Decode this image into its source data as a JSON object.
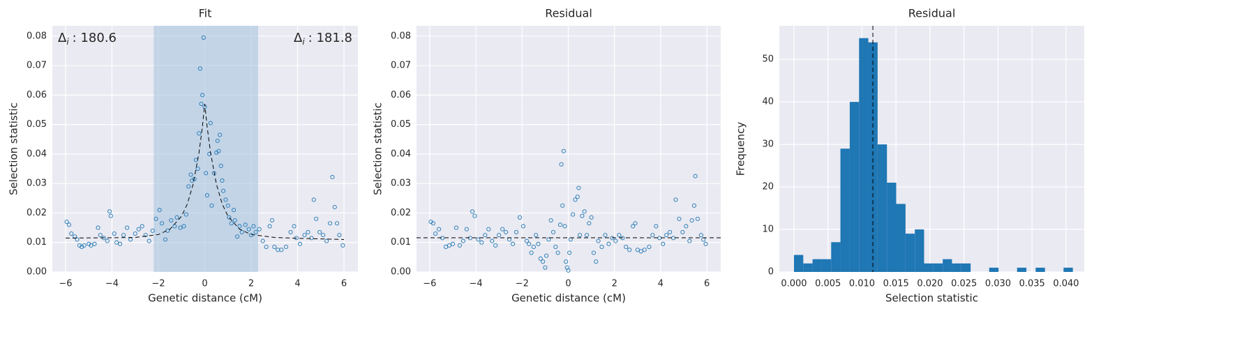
{
  "chart_data": [
    {
      "type": "scatter",
      "title": "Fit",
      "xlabel": "Genetic distance (cM)",
      "ylabel": "Selection statistic",
      "xlim": [
        -6.57,
        6.6
      ],
      "ylim": [
        0,
        0.0835
      ],
      "xticks": [
        {
          "value": -6,
          "label": "−6"
        },
        {
          "value": -4,
          "label": "−4"
        },
        {
          "value": -2,
          "label": "−2"
        },
        0,
        2,
        4,
        6
      ],
      "yticks": [
        {
          "value": 0,
          "label": "0.00"
        },
        {
          "value": 0.01,
          "label": "0.01"
        },
        {
          "value": 0.02,
          "label": "0.02"
        },
        {
          "value": 0.03,
          "label": "0.03"
        },
        {
          "value": 0.04,
          "label": "0.04"
        },
        {
          "value": 0.05,
          "label": "0.05"
        },
        {
          "value": 0.06,
          "label": "0.06"
        },
        {
          "value": 0.07,
          "label": "0.07"
        },
        {
          "value": 0.08,
          "label": "0.08"
        }
      ],
      "grid": true,
      "color": "#1f77b4",
      "span": [
        -2.2,
        2.3
      ],
      "span_color": "#a8c4e0",
      "annotations": [
        {
          "symbol": "Δ",
          "subscript": "i",
          "text": ": 180.6"
        },
        {
          "symbol": "Δ",
          "subscript": "i",
          "text": ": 181.8"
        }
      ],
      "x": [
        -5.95,
        -5.85,
        -5.75,
        -5.6,
        -5.5,
        -5.4,
        -5.3,
        -5.2,
        -5.0,
        -4.9,
        -4.75,
        -4.6,
        -4.5,
        -4.35,
        -4.2,
        -4.1,
        -4.05,
        -3.9,
        -3.8,
        -3.65,
        -3.5,
        -3.35,
        -3.2,
        -3.0,
        -2.85,
        -2.7,
        -2.55,
        -2.4,
        -2.25,
        -2.1,
        -1.95,
        -1.85,
        -1.7,
        -1.6,
        -1.45,
        -1.3,
        -1.2,
        -1.05,
        -0.9,
        -0.8,
        -0.7,
        -0.6,
        -0.55,
        -0.45,
        -0.38,
        -0.3,
        -0.25,
        -0.2,
        -0.15,
        -0.1,
        -0.05,
        0.0,
        0.05,
        0.1,
        0.2,
        0.25,
        0.3,
        0.4,
        0.5,
        0.55,
        0.6,
        0.65,
        0.7,
        0.75,
        0.8,
        0.9,
        1.0,
        1.05,
        1.15,
        1.25,
        1.3,
        1.4,
        1.5,
        1.6,
        1.75,
        1.9,
        2.0,
        2.1,
        2.2,
        2.35,
        2.5,
        2.65,
        2.8,
        2.9,
        3.0,
        3.15,
        3.3,
        3.5,
        3.7,
        3.85,
        3.95,
        4.1,
        4.3,
        4.45,
        4.6,
        4.7,
        4.8,
        4.95,
        5.1,
        5.25,
        5.4,
        5.5,
        5.6,
        5.7,
        5.8,
        5.95
      ],
      "values": [
        0.017,
        0.016,
        0.013,
        0.012,
        0.011,
        0.009,
        0.0085,
        0.009,
        0.0095,
        0.009,
        0.0095,
        0.015,
        0.0125,
        0.0115,
        0.0105,
        0.0205,
        0.019,
        0.013,
        0.01,
        0.0095,
        0.0125,
        0.015,
        0.011,
        0.013,
        0.0145,
        0.0155,
        0.0125,
        0.0105,
        0.014,
        0.018,
        0.021,
        0.0165,
        0.011,
        0.014,
        0.0175,
        0.0155,
        0.0185,
        0.015,
        0.0155,
        0.0195,
        0.029,
        0.033,
        0.031,
        0.0315,
        0.038,
        0.035,
        0.047,
        0.069,
        0.057,
        0.06,
        0.0795,
        0.056,
        0.0335,
        0.026,
        0.04,
        0.0505,
        0.0225,
        0.0335,
        0.0405,
        0.0445,
        0.041,
        0.0465,
        0.036,
        0.031,
        0.0275,
        0.0245,
        0.0225,
        0.0185,
        0.0165,
        0.021,
        0.0175,
        0.012,
        0.0155,
        0.0135,
        0.016,
        0.0145,
        0.0125,
        0.0155,
        0.0135,
        0.0145,
        0.0105,
        0.0085,
        0.0155,
        0.0175,
        0.0085,
        0.0075,
        0.0075,
        0.0085,
        0.0135,
        0.0155,
        0.0115,
        0.0095,
        0.0125,
        0.0135,
        0.0115,
        0.0245,
        0.018,
        0.0135,
        0.0125,
        0.0105,
        0.0165,
        0.0322,
        0.022,
        0.0165,
        0.0125,
        0.009
      ],
      "fit": {
        "x": [
          -6,
          -4,
          -3,
          -2,
          -1.5,
          -1,
          -0.75,
          -0.5,
          -0.25,
          -0.1,
          0,
          0.1,
          0.25,
          0.5,
          0.75,
          1,
          1.5,
          2,
          3,
          4,
          6
        ],
        "values": [
          0.0115,
          0.0116,
          0.0117,
          0.0127,
          0.0145,
          0.0189,
          0.0231,
          0.0298,
          0.0404,
          0.0494,
          0.057,
          0.0494,
          0.0404,
          0.0298,
          0.0231,
          0.0189,
          0.0145,
          0.0127,
          0.0117,
          0.0114,
          0.011
        ]
      }
    },
    {
      "type": "scatter",
      "title": "Residual",
      "xlabel": "Genetic distance (cM)",
      "ylabel": "Selection statistic",
      "xlim": [
        -6.57,
        6.6
      ],
      "ylim": [
        0,
        0.0835
      ],
      "xticks": [
        {
          "value": -6,
          "label": "−6"
        },
        {
          "value": -4,
          "label": "−4"
        },
        {
          "value": -2,
          "label": "−2"
        },
        0,
        2,
        4,
        6
      ],
      "yticks": [
        {
          "value": 0,
          "label": "0.00"
        },
        {
          "value": 0.01,
          "label": "0.01"
        },
        {
          "value": 0.02,
          "label": "0.02"
        },
        {
          "value": 0.03,
          "label": "0.03"
        },
        {
          "value": 0.04,
          "label": "0.04"
        },
        {
          "value": 0.05,
          "label": "0.05"
        },
        {
          "value": 0.06,
          "label": "0.06"
        },
        {
          "value": 0.07,
          "label": "0.07"
        },
        {
          "value": 0.08,
          "label": "0.08"
        }
      ],
      "grid": true,
      "color": "#1f77b4",
      "hline": 0.0116,
      "x": [
        -5.95,
        -5.85,
        -5.75,
        -5.6,
        -5.45,
        -5.3,
        -5.15,
        -5.0,
        -4.85,
        -4.7,
        -4.55,
        -4.4,
        -4.25,
        -4.15,
        -4.05,
        -3.9,
        -3.75,
        -3.6,
        -3.45,
        -3.3,
        -3.15,
        -3.0,
        -2.85,
        -2.7,
        -2.55,
        -2.4,
        -2.25,
        -2.1,
        -1.95,
        -1.8,
        -1.7,
        -1.6,
        -1.5,
        -1.4,
        -1.3,
        -1.2,
        -1.1,
        -1.0,
        -0.95,
        -0.85,
        -0.75,
        -0.65,
        -0.55,
        -0.45,
        -0.35,
        -0.3,
        -0.25,
        -0.2,
        -0.15,
        -0.1,
        -0.05,
        0.0,
        0.05,
        0.1,
        0.2,
        0.3,
        0.4,
        0.45,
        0.5,
        0.6,
        0.7,
        0.8,
        0.9,
        1.0,
        1.1,
        1.2,
        1.3,
        1.45,
        1.6,
        1.75,
        1.9,
        2.05,
        2.2,
        2.35,
        2.5,
        2.65,
        2.8,
        2.9,
        3.0,
        3.15,
        3.3,
        3.5,
        3.65,
        3.8,
        3.95,
        4.1,
        4.25,
        4.4,
        4.55,
        4.65,
        4.8,
        4.95,
        5.1,
        5.25,
        5.35,
        5.45,
        5.5,
        5.6,
        5.75,
        5.85,
        5.95
      ],
      "values": [
        0.017,
        0.0165,
        0.013,
        0.0145,
        0.0115,
        0.0085,
        0.009,
        0.0095,
        0.015,
        0.009,
        0.0105,
        0.0145,
        0.0115,
        0.0205,
        0.019,
        0.011,
        0.01,
        0.0125,
        0.0145,
        0.0105,
        0.009,
        0.0125,
        0.0145,
        0.0135,
        0.011,
        0.0095,
        0.0135,
        0.0185,
        0.0155,
        0.0105,
        0.0095,
        0.0065,
        0.0085,
        0.0125,
        0.0095,
        0.0045,
        0.0035,
        0.0015,
        0.0055,
        0.011,
        0.0175,
        0.0135,
        0.0085,
        0.0065,
        0.016,
        0.0365,
        0.0225,
        0.041,
        0.0155,
        0.0035,
        0.0015,
        0.0005,
        0.0065,
        0.011,
        0.0195,
        0.0245,
        0.0255,
        0.0285,
        0.0125,
        0.019,
        0.0205,
        0.0125,
        0.0165,
        0.0185,
        0.0065,
        0.0035,
        0.0105,
        0.0085,
        0.0125,
        0.0095,
        0.0115,
        0.0105,
        0.0125,
        0.0115,
        0.0085,
        0.0075,
        0.0155,
        0.0165,
        0.0075,
        0.007,
        0.0075,
        0.0085,
        0.0125,
        0.0155,
        0.0115,
        0.0095,
        0.0125,
        0.0135,
        0.0115,
        0.0245,
        0.018,
        0.0135,
        0.0155,
        0.0105,
        0.0175,
        0.0225,
        0.0325,
        0.018,
        0.0125,
        0.011,
        0.0095
      ]
    },
    {
      "type": "histogram",
      "title": "Residual",
      "xlabel": "Selection statistic",
      "ylabel": "Frequency",
      "xlim": [
        -0.00215,
        0.04267
      ],
      "ylim": [
        0,
        57.9
      ],
      "xticks": [
        {
          "value": 0,
          "label": "0.000"
        },
        {
          "value": 0.005,
          "label": "0.005"
        },
        {
          "value": 0.01,
          "label": "0.010"
        },
        {
          "value": 0.015,
          "label": "0.015"
        },
        {
          "value": 0.02,
          "label": "0.020"
        },
        {
          "value": 0.025,
          "label": "0.025"
        },
        {
          "value": 0.03,
          "label": "0.030"
        },
        {
          "value": 0.035,
          "label": "0.035"
        },
        {
          "value": 0.04,
          "label": "0.040"
        }
      ],
      "yticks": [
        0,
        10,
        20,
        30,
        40,
        50
      ],
      "grid": true,
      "color": "#1f77b4",
      "vline": 0.0116,
      "bins": [
        0,
        0.00137,
        0.00273,
        0.0041,
        0.00547,
        0.00683,
        0.0082,
        0.00957,
        0.01093,
        0.0123,
        0.01367,
        0.01503,
        0.0164,
        0.01777,
        0.01913,
        0.0205,
        0.02187,
        0.02323,
        0.0246,
        0.02597,
        0.02733,
        0.0287,
        0.03007,
        0.03143,
        0.0328,
        0.03417,
        0.03553,
        0.0369,
        0.03827,
        0.03963,
        0.041
      ],
      "values": [
        4,
        2,
        3,
        3,
        7,
        29,
        40,
        55,
        54,
        30,
        21,
        16,
        9,
        10,
        2,
        2,
        3,
        2,
        2,
        0,
        0,
        1,
        0,
        0,
        1,
        0,
        1,
        0,
        0,
        1
      ]
    }
  ]
}
